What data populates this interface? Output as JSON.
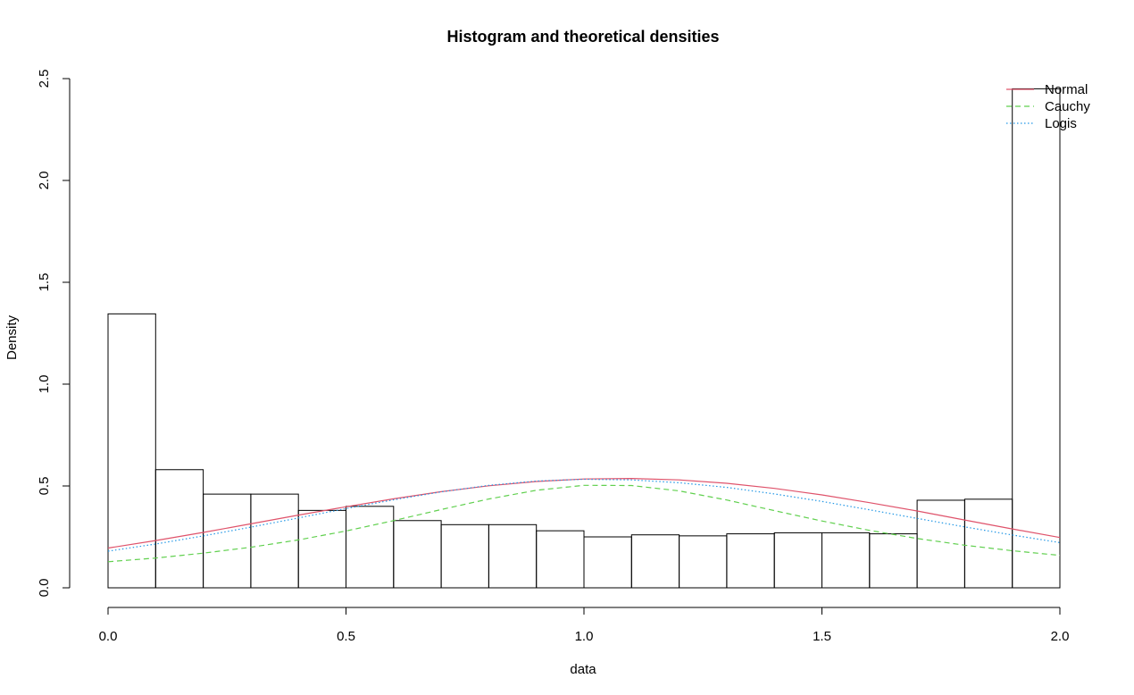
{
  "chart_data": {
    "type": "bar",
    "title": "Histogram and theoretical densities",
    "xlabel": "data",
    "ylabel": "Density",
    "xlim": [
      0.0,
      2.0
    ],
    "ylim": [
      0.0,
      2.5
    ],
    "x_ticks": [
      "0.0",
      "0.5",
      "1.0",
      "1.5",
      "2.0"
    ],
    "y_ticks": [
      "0.0",
      "0.5",
      "1.0",
      "1.5",
      "2.0",
      "2.5"
    ],
    "grid": false,
    "legend_position": "top-right",
    "bins": [
      {
        "start": 0.0,
        "end": 0.1,
        "density": 1.345
      },
      {
        "start": 0.1,
        "end": 0.2,
        "density": 0.58
      },
      {
        "start": 0.2,
        "end": 0.3,
        "density": 0.46
      },
      {
        "start": 0.3,
        "end": 0.4,
        "density": 0.46
      },
      {
        "start": 0.4,
        "end": 0.5,
        "density": 0.38
      },
      {
        "start": 0.5,
        "end": 0.6,
        "density": 0.4
      },
      {
        "start": 0.6,
        "end": 0.7,
        "density": 0.33
      },
      {
        "start": 0.7,
        "end": 0.8,
        "density": 0.31
      },
      {
        "start": 0.8,
        "end": 0.9,
        "density": 0.31
      },
      {
        "start": 0.9,
        "end": 1.0,
        "density": 0.28
      },
      {
        "start": 1.0,
        "end": 1.1,
        "density": 0.25
      },
      {
        "start": 1.1,
        "end": 1.2,
        "density": 0.26
      },
      {
        "start": 1.2,
        "end": 1.3,
        "density": 0.255
      },
      {
        "start": 1.3,
        "end": 1.4,
        "density": 0.265
      },
      {
        "start": 1.4,
        "end": 1.5,
        "density": 0.27
      },
      {
        "start": 1.5,
        "end": 1.6,
        "density": 0.27
      },
      {
        "start": 1.6,
        "end": 1.7,
        "density": 0.265
      },
      {
        "start": 1.7,
        "end": 1.8,
        "density": 0.43
      },
      {
        "start": 1.8,
        "end": 1.9,
        "density": 0.435
      },
      {
        "start": 1.9,
        "end": 2.0,
        "density": 2.45
      }
    ],
    "series": [
      {
        "name": "Normal",
        "color": "#DF536B",
        "dash": "solid",
        "x": [
          0.0,
          0.1,
          0.2,
          0.3,
          0.4,
          0.5,
          0.6,
          0.7,
          0.8,
          0.9,
          1.0,
          1.1,
          1.2,
          1.3,
          1.4,
          1.5,
          1.6,
          1.7,
          1.8,
          1.9,
          2.0
        ],
        "y": [
          0.195,
          0.232,
          0.272,
          0.314,
          0.357,
          0.398,
          0.437,
          0.472,
          0.501,
          0.522,
          0.534,
          0.537,
          0.53,
          0.513,
          0.488,
          0.456,
          0.418,
          0.377,
          0.333,
          0.289,
          0.247
        ]
      },
      {
        "name": "Cauchy",
        "color": "#61D04F",
        "dash": "dashed",
        "x": [
          0.0,
          0.1,
          0.2,
          0.3,
          0.4,
          0.5,
          0.6,
          0.7,
          0.8,
          0.9,
          1.0,
          1.1,
          1.2,
          1.3,
          1.4,
          1.5,
          1.6,
          1.7,
          1.8,
          1.9,
          2.0
        ],
        "y": [
          0.128,
          0.146,
          0.17,
          0.199,
          0.235,
          0.279,
          0.33,
          0.384,
          0.436,
          0.479,
          0.503,
          0.502,
          0.476,
          0.431,
          0.379,
          0.328,
          0.282,
          0.242,
          0.209,
          0.182,
          0.159
        ]
      },
      {
        "name": "Logis",
        "color": "#2297E6",
        "dash": "dotted",
        "x": [
          0.0,
          0.1,
          0.2,
          0.3,
          0.4,
          0.5,
          0.6,
          0.7,
          0.8,
          0.9,
          1.0,
          1.1,
          1.2,
          1.3,
          1.4,
          1.5,
          1.6,
          1.7,
          1.8,
          1.9,
          2.0
        ],
        "y": [
          0.18,
          0.215,
          0.255,
          0.298,
          0.343,
          0.389,
          0.432,
          0.471,
          0.503,
          0.524,
          0.533,
          0.53,
          0.516,
          0.493,
          0.461,
          0.424,
          0.383,
          0.341,
          0.299,
          0.259,
          0.222
        ]
      }
    ]
  }
}
